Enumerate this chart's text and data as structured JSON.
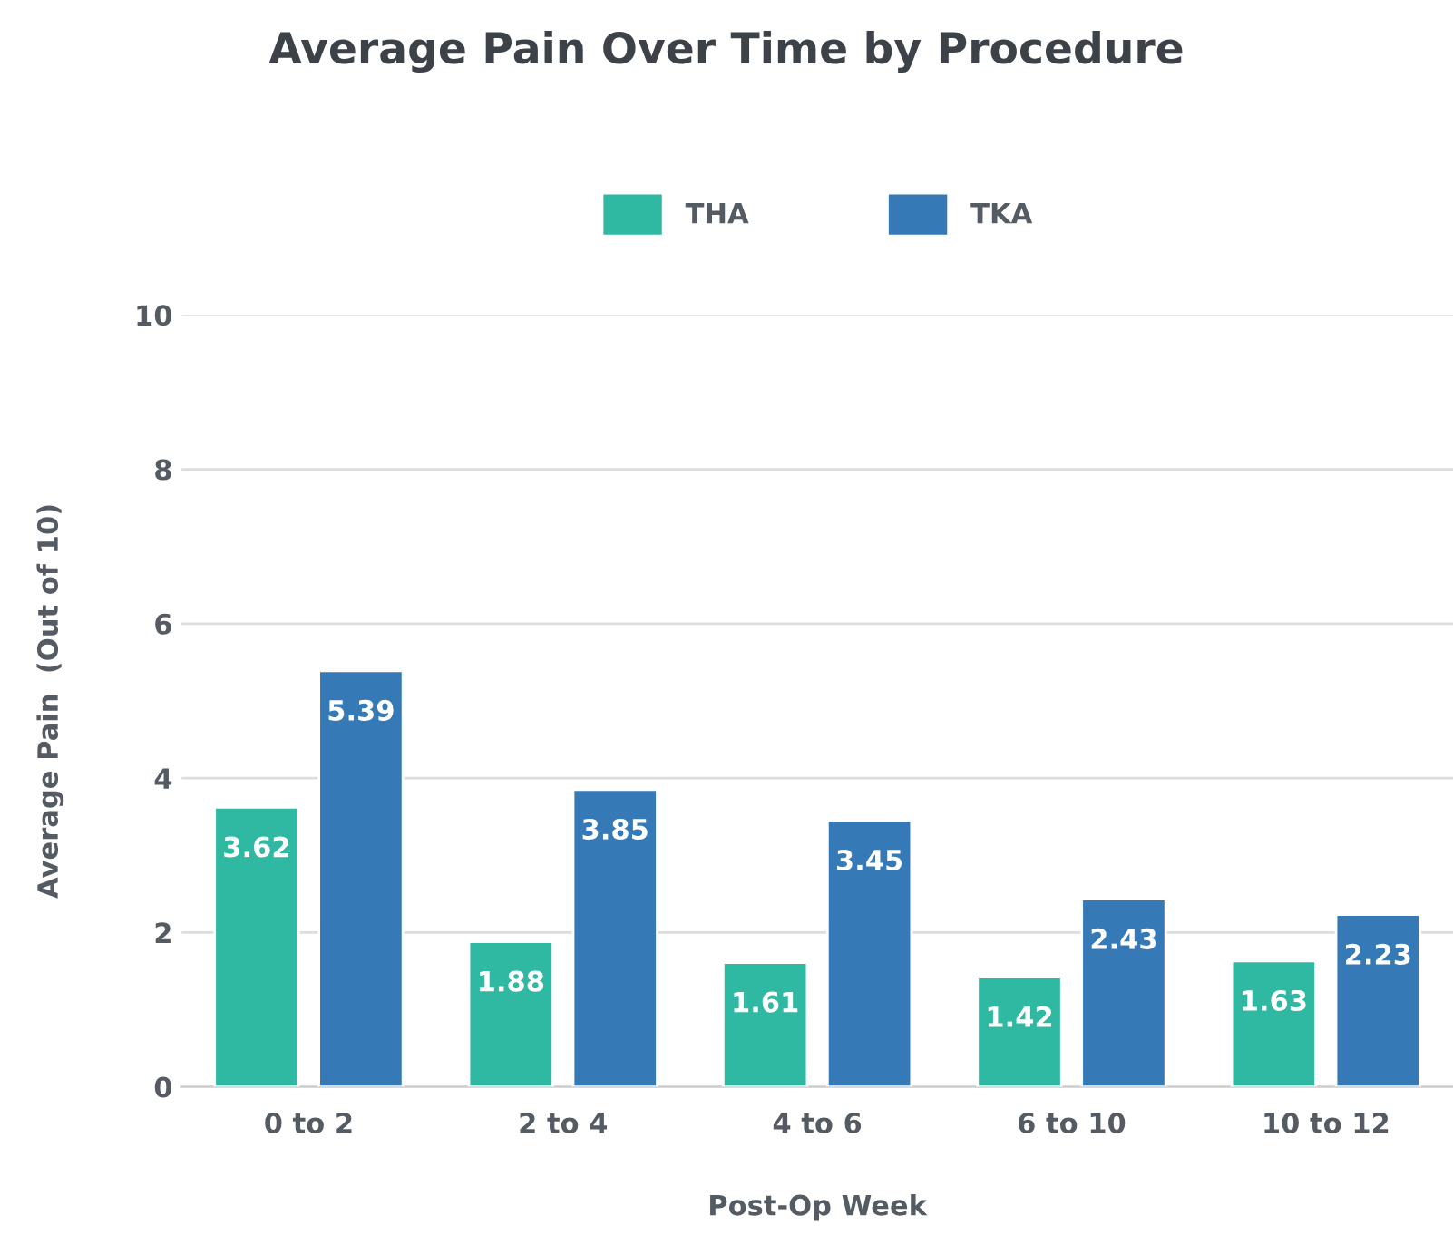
{
  "chart_data": {
    "type": "bar",
    "title": "Average Pain Over Time by Procedure",
    "xlabel": "Post-Op Week",
    "ylabel": "Average Pain  (Out of 10)",
    "categories": [
      "0 to 2",
      "2 to 4",
      "4 to 6",
      "6 to 10",
      "10 to 12"
    ],
    "series": [
      {
        "name": "THA",
        "color": "#2fb9a3",
        "values": [
          3.62,
          1.88,
          1.61,
          1.42,
          1.63
        ]
      },
      {
        "name": "TKA",
        "color": "#3579b7",
        "values": [
          5.39,
          3.85,
          3.45,
          2.43,
          2.23
        ]
      }
    ],
    "ylim": [
      0,
      10
    ],
    "yticks": [
      0,
      2,
      4,
      6,
      8,
      10
    ],
    "grid": "y",
    "legend": "top",
    "data_labels": true
  }
}
